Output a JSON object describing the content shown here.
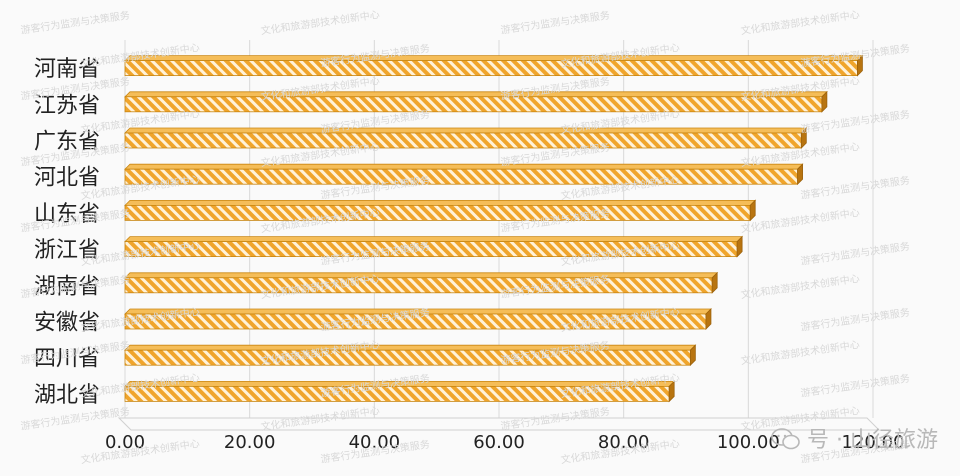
{
  "chart_data": {
    "type": "bar",
    "orientation": "horizontal",
    "categories": [
      "河南省",
      "江苏省",
      "广东省",
      "河北省",
      "山东省",
      "浙江省",
      "湖南省",
      "安徽省",
      "四川省",
      "湖北省"
    ],
    "values": [
      117.5,
      111.8,
      108.5,
      107.9,
      100.3,
      98.2,
      94.2,
      93.2,
      90.7,
      87.3
    ],
    "xlim": [
      0,
      120
    ],
    "xticks": [
      "0.00",
      "20.00",
      "40.00",
      "60.00",
      "80.00",
      "100.00",
      "120.00"
    ],
    "grid": true,
    "bar_color": "#f0a52c",
    "bar_pattern": "diagonal-hatch"
  },
  "watermark": {
    "text_a": "游客行为监测与决策服务",
    "text_b": "文化和旅游部技术创新中心",
    "footer": "号 · 山径旅游"
  }
}
